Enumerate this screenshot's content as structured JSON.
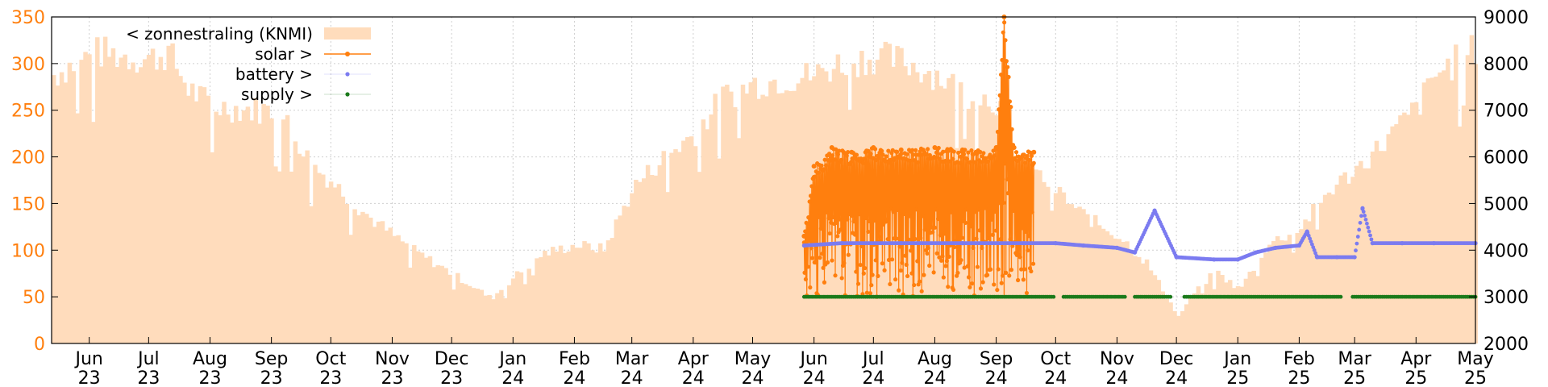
{
  "chart_data": {
    "type": "line",
    "title": "",
    "x_axis": {
      "type": "date",
      "range": [
        "2023-05-13",
        "2025-05-01"
      ],
      "ticks": [
        {
          "date": "2023-06-01",
          "label": "Jun",
          "year": "23"
        },
        {
          "date": "2023-07-01",
          "label": "Jul",
          "year": "23"
        },
        {
          "date": "2023-08-01",
          "label": "Aug",
          "year": "23"
        },
        {
          "date": "2023-09-01",
          "label": "Sep",
          "year": "23"
        },
        {
          "date": "2023-10-01",
          "label": "Oct",
          "year": "23"
        },
        {
          "date": "2023-11-01",
          "label": "Nov",
          "year": "23"
        },
        {
          "date": "2023-12-01",
          "label": "Dec",
          "year": "23"
        },
        {
          "date": "2024-01-01",
          "label": "Jan",
          "year": "24"
        },
        {
          "date": "2024-02-01",
          "label": "Feb",
          "year": "24"
        },
        {
          "date": "2024-03-01",
          "label": "Mar",
          "year": "24"
        },
        {
          "date": "2024-04-01",
          "label": "Apr",
          "year": "24"
        },
        {
          "date": "2024-05-01",
          "label": "May",
          "year": "24"
        },
        {
          "date": "2024-06-01",
          "label": "Jun",
          "year": "24"
        },
        {
          "date": "2024-07-01",
          "label": "Jul",
          "year": "24"
        },
        {
          "date": "2024-08-01",
          "label": "Aug",
          "year": "24"
        },
        {
          "date": "2024-09-01",
          "label": "Sep",
          "year": "24"
        },
        {
          "date": "2024-10-01",
          "label": "Oct",
          "year": "24"
        },
        {
          "date": "2024-11-01",
          "label": "Nov",
          "year": "24"
        },
        {
          "date": "2024-12-01",
          "label": "Dec",
          "year": "24"
        },
        {
          "date": "2025-01-01",
          "label": "Jan",
          "year": "25"
        },
        {
          "date": "2025-02-01",
          "label": "Feb",
          "year": "25"
        },
        {
          "date": "2025-03-01",
          "label": "Mar",
          "year": "25"
        },
        {
          "date": "2025-04-01",
          "label": "Apr",
          "year": "25"
        },
        {
          "date": "2025-05-01",
          "label": "May",
          "year": "25"
        }
      ]
    },
    "y_left": {
      "range": [
        0,
        350
      ],
      "ticks": [
        0,
        50,
        100,
        150,
        200,
        250,
        300,
        350
      ],
      "color": "#ff7f0e"
    },
    "y_right": {
      "range": [
        2000,
        9000
      ],
      "ticks": [
        2000,
        3000,
        4000,
        5000,
        6000,
        7000,
        8000,
        9000
      ],
      "color": "#000000"
    },
    "grid": true,
    "legend_position": "top-left",
    "series": [
      {
        "name": "< zonnestraling (KNMI)",
        "kind": "area",
        "axis": "left",
        "color": "#ffdcbc",
        "points": [
          [
            "2023-05-13",
            300
          ],
          [
            "2023-05-25",
            315
          ],
          [
            "2023-06-05",
            325
          ],
          [
            "2023-06-20",
            320
          ],
          [
            "2023-07-01",
            318
          ],
          [
            "2023-07-10",
            325
          ],
          [
            "2023-07-20",
            285
          ],
          [
            "2023-08-01",
            265
          ],
          [
            "2023-08-15",
            262
          ],
          [
            "2023-09-01",
            260
          ],
          [
            "2023-09-10",
            240
          ],
          [
            "2023-09-20",
            200
          ],
          [
            "2023-10-01",
            180
          ],
          [
            "2023-10-10",
            160
          ],
          [
            "2023-10-20",
            140
          ],
          [
            "2023-11-01",
            120
          ],
          [
            "2023-11-10",
            105
          ],
          [
            "2023-11-25",
            85
          ],
          [
            "2023-12-10",
            65
          ],
          [
            "2023-12-20",
            50
          ],
          [
            "2024-01-01",
            75
          ],
          [
            "2024-01-15",
            100
          ],
          [
            "2024-02-01",
            110
          ],
          [
            "2024-02-15",
            105
          ],
          [
            "2024-03-01",
            175
          ],
          [
            "2024-03-15",
            205
          ],
          [
            "2024-04-01",
            235
          ],
          [
            "2024-04-15",
            275
          ],
          [
            "2024-05-01",
            290
          ],
          [
            "2024-05-15",
            295
          ],
          [
            "2024-06-01",
            300
          ],
          [
            "2024-06-15",
            315
          ],
          [
            "2024-07-01",
            320
          ],
          [
            "2024-07-15",
            315
          ],
          [
            "2024-08-01",
            300
          ],
          [
            "2024-08-15",
            280
          ],
          [
            "2024-09-01",
            270
          ],
          [
            "2024-09-10",
            215
          ],
          [
            "2024-09-20",
            190
          ],
          [
            "2024-10-01",
            170
          ],
          [
            "2024-10-10",
            150
          ],
          [
            "2024-10-20",
            135
          ],
          [
            "2024-11-01",
            120
          ],
          [
            "2024-11-15",
            90
          ],
          [
            "2024-12-01",
            30
          ],
          [
            "2024-12-10",
            60
          ],
          [
            "2024-12-20",
            80
          ],
          [
            "2025-01-01",
            60
          ],
          [
            "2025-01-15",
            110
          ],
          [
            "2025-02-01",
            130
          ],
          [
            "2025-02-15",
            170
          ],
          [
            "2025-03-01",
            195
          ],
          [
            "2025-03-15",
            225
          ],
          [
            "2025-04-01",
            265
          ],
          [
            "2025-04-10",
            300
          ],
          [
            "2025-04-20",
            315
          ],
          [
            "2025-05-01",
            330
          ]
        ]
      },
      {
        "name": "solar >",
        "kind": "line-points",
        "axis": "right",
        "color": "#ff7f0e",
        "points": [
          [
            "2024-05-27",
            4300
          ],
          [
            "2024-06-01",
            5800
          ],
          [
            "2024-06-10",
            6200
          ],
          [
            "2024-06-20",
            6100
          ],
          [
            "2024-07-01",
            6200
          ],
          [
            "2024-07-15",
            6150
          ],
          [
            "2024-08-01",
            6200
          ],
          [
            "2024-08-15",
            6150
          ],
          [
            "2024-09-01",
            6200
          ],
          [
            "2024-09-05",
            9000
          ],
          [
            "2024-09-10",
            6200
          ],
          [
            "2024-09-20",
            6100
          ]
        ],
        "envelope_low": 3000,
        "envelope_high": 6200
      },
      {
        "name": "battery >",
        "kind": "points",
        "axis": "right",
        "color": "#7b7bf0",
        "points": [
          [
            "2024-05-27",
            4100
          ],
          [
            "2024-06-15",
            4150
          ],
          [
            "2024-07-15",
            4150
          ],
          [
            "2024-08-15",
            4150
          ],
          [
            "2024-09-15",
            4150
          ],
          [
            "2024-10-01",
            4150
          ],
          [
            "2024-10-15",
            4100
          ],
          [
            "2024-11-01",
            4050
          ],
          [
            "2024-11-10",
            3950
          ],
          [
            "2024-11-20",
            4850
          ],
          [
            "2024-12-01",
            3850
          ],
          [
            "2024-12-20",
            3800
          ],
          [
            "2025-01-01",
            3800
          ],
          [
            "2025-01-10",
            3950
          ],
          [
            "2025-01-20",
            4050
          ],
          [
            "2025-02-01",
            4100
          ],
          [
            "2025-02-05",
            4400
          ],
          [
            "2025-02-10",
            3850
          ],
          [
            "2025-02-20",
            3850
          ],
          [
            "2025-03-01",
            3850
          ],
          [
            "2025-03-05",
            4900
          ],
          [
            "2025-03-10",
            4150
          ],
          [
            "2025-03-25",
            4150
          ],
          [
            "2025-04-10",
            4150
          ],
          [
            "2025-05-01",
            4150
          ]
        ]
      },
      {
        "name": "supply >",
        "kind": "points",
        "axis": "right",
        "color": "#1a7a1a",
        "points": [
          [
            "2024-05-27",
            3000
          ],
          [
            "2024-09-30",
            3000
          ],
          [
            "2024-10-05",
            3000
          ],
          [
            "2024-11-05",
            3000
          ],
          [
            "2024-11-10",
            3000
          ],
          [
            "2024-11-28",
            3000
          ],
          [
            "2024-12-05",
            3000
          ],
          [
            "2025-02-22",
            3000
          ],
          [
            "2025-02-28",
            3000
          ],
          [
            "2025-05-01",
            3000
          ]
        ]
      }
    ]
  }
}
